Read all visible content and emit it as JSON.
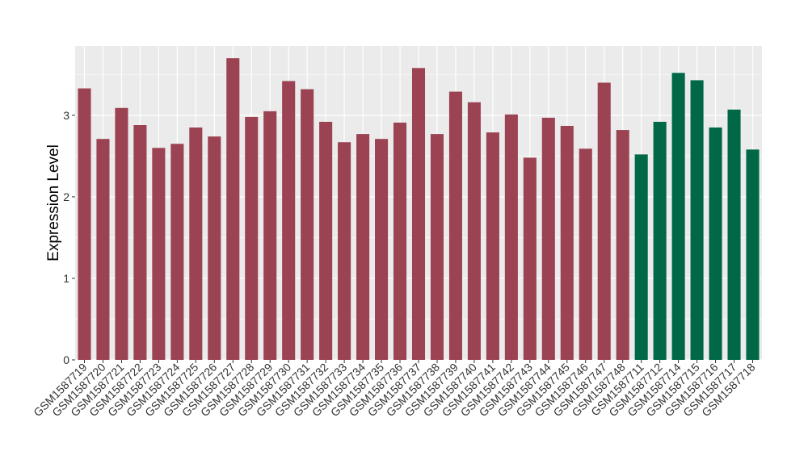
{
  "chart_data": {
    "type": "bar",
    "title": "",
    "xlabel": "",
    "ylabel": "Expression Level",
    "ylim": [
      0,
      3.85
    ],
    "yticks": [
      0,
      1,
      2,
      3
    ],
    "grid": true,
    "legend": "none",
    "categories": [
      "GSM1587719",
      "GSM1587720",
      "GSM1587721",
      "GSM1587722",
      "GSM1587723",
      "GSM1587724",
      "GSM1587725",
      "GSM1587726",
      "GSM1587727",
      "GSM1587728",
      "GSM1587729",
      "GSM1587730",
      "GSM1587731",
      "GSM1587732",
      "GSM1587733",
      "GSM1587734",
      "GSM1587735",
      "GSM1587736",
      "GSM1587737",
      "GSM1587738",
      "GSM1587739",
      "GSM1587740",
      "GSM1587741",
      "GSM1587742",
      "GSM1587743",
      "GSM1587744",
      "GSM1587745",
      "GSM1587746",
      "GSM1587747",
      "GSM1587748",
      "GSM1587711",
      "GSM1587712",
      "GSM1587714",
      "GSM1587715",
      "GSM1587716",
      "GSM1587717",
      "GSM1587718"
    ],
    "values": [
      3.33,
      2.71,
      3.09,
      2.88,
      2.6,
      2.65,
      2.85,
      2.74,
      3.7,
      2.98,
      3.05,
      3.42,
      3.32,
      2.92,
      2.67,
      2.77,
      2.71,
      2.91,
      3.58,
      2.77,
      3.29,
      3.16,
      2.79,
      3.01,
      2.48,
      2.97,
      2.87,
      2.59,
      3.4,
      2.82,
      2.52,
      2.92,
      3.52,
      3.43,
      2.85,
      3.07,
      2.58
    ],
    "groups": [
      0,
      0,
      0,
      0,
      0,
      0,
      0,
      0,
      0,
      0,
      0,
      0,
      0,
      0,
      0,
      0,
      0,
      0,
      0,
      0,
      0,
      0,
      0,
      0,
      0,
      0,
      0,
      0,
      0,
      0,
      1,
      1,
      1,
      1,
      1,
      1,
      1
    ],
    "colors": [
      "#9b4352",
      "#006847"
    ],
    "panel_background": "#ebebeb",
    "grid_color": "#ffffff"
  }
}
